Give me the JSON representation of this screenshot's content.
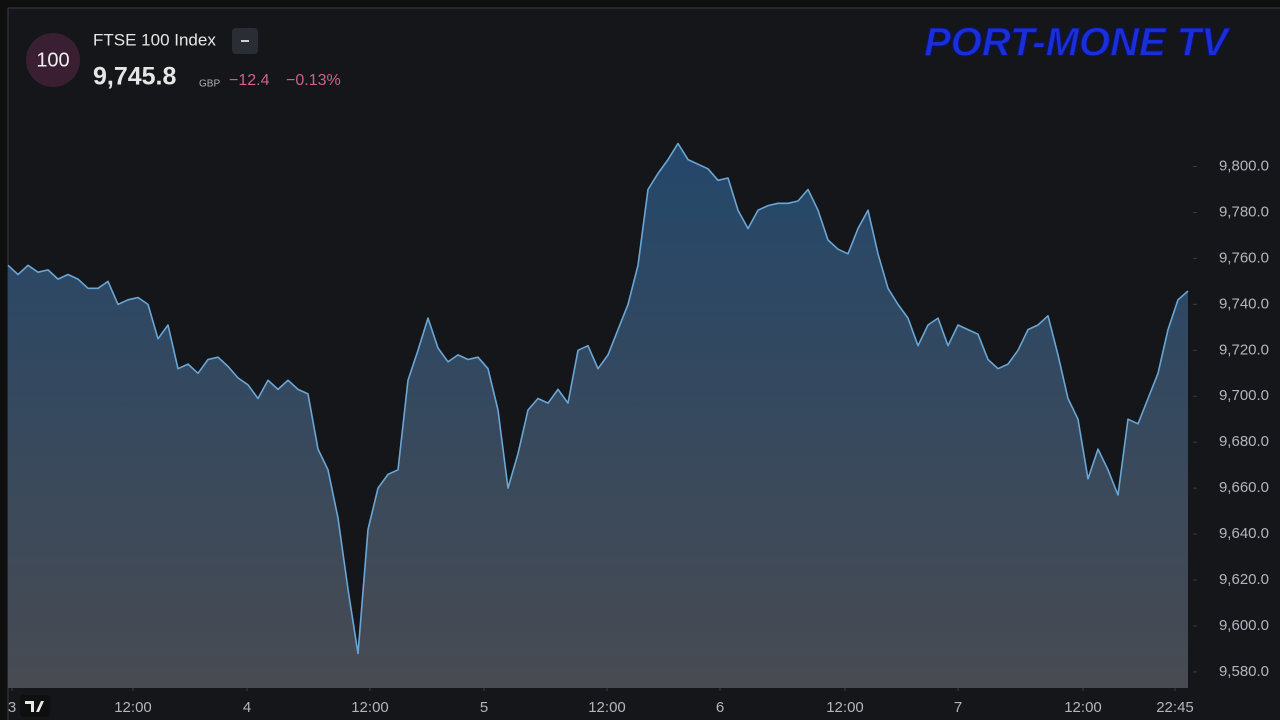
{
  "header": {
    "badge": "100",
    "name": "FTSE 100 Index",
    "price": "9,745.8",
    "currency": "GBP",
    "change": "−12.4",
    "change_pct": "−0.13%"
  },
  "logo": "PORT-MONE TV",
  "chart_data": {
    "type": "area",
    "color": "#6aa6d6",
    "values": [
      9757,
      9753,
      9757,
      9754,
      9755,
      9751,
      9753,
      9751,
      9747,
      9747,
      9750,
      9740,
      9742,
      9743,
      9740,
      9725,
      9731,
      9712,
      9714,
      9710,
      9716,
      9717,
      9713,
      9708,
      9705,
      9699,
      9707,
      9703,
      9707,
      9703,
      9701,
      9677,
      9668,
      9647,
      9616,
      9588,
      9642,
      9660,
      9666,
      9668,
      9707,
      9720,
      9734,
      9721,
      9715,
      9718,
      9716,
      9717,
      9712,
      9694,
      9660,
      9675,
      9694,
      9699,
      9697,
      9703,
      9697,
      9720,
      9722,
      9712,
      9718,
      9729,
      9740,
      9757,
      9790,
      9797,
      9803,
      9810,
      9803,
      9801,
      9799,
      9794,
      9795,
      9781,
      9773,
      9781,
      9783,
      9784,
      9784,
      9785,
      9790,
      9781,
      9768,
      9764,
      9762,
      9773,
      9781,
      9762,
      9747,
      9740,
      9734,
      9722,
      9731,
      9734,
      9722,
      9731,
      9729,
      9727,
      9716,
      9712,
      9714,
      9720,
      9729,
      9731,
      9735,
      9718,
      9699,
      9690,
      9664,
      9677,
      9668,
      9657,
      9690,
      9688,
      9699,
      9710,
      9729,
      9742,
      9745.8
    ],
    "xlim": [
      0,
      118.5
    ],
    "xticks": [
      {
        "value": 0.4,
        "label": "3"
      },
      {
        "value": 12.5,
        "label": "12:00"
      },
      {
        "value": 23.9,
        "label": "4"
      },
      {
        "value": 36.2,
        "label": "12:00"
      },
      {
        "value": 47.6,
        "label": "5"
      },
      {
        "value": 59.9,
        "label": "12:00"
      },
      {
        "value": 71.2,
        "label": "6"
      },
      {
        "value": 83.7,
        "label": "12:00"
      },
      {
        "value": 95,
        "label": "7"
      },
      {
        "value": 107.5,
        "label": "12:00"
      },
      {
        "value": 116.7,
        "label": "22:45"
      }
    ],
    "ylim": [
      9573,
      9869
    ],
    "yticks": [
      {
        "value": 9580,
        "label": "9,580.0"
      },
      {
        "value": 9600,
        "label": "9,600.0"
      },
      {
        "value": 9620,
        "label": "9,620.0"
      },
      {
        "value": 9640,
        "label": "9,640.0"
      },
      {
        "value": 9660,
        "label": "9,660.0"
      },
      {
        "value": 9680,
        "label": "9,680.0"
      },
      {
        "value": 9700,
        "label": "9,700.0"
      },
      {
        "value": 9720,
        "label": "9,720.0"
      },
      {
        "value": 9740,
        "label": "9,740.0"
      },
      {
        "value": 9760,
        "label": "9,760.0"
      },
      {
        "value": 9780,
        "label": "9,780.0"
      },
      {
        "value": 9800,
        "label": "9,800.0"
      }
    ]
  }
}
